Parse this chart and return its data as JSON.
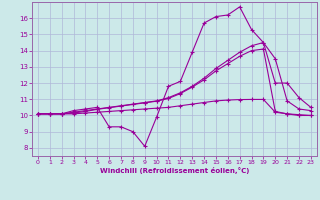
{
  "xlabel": "Windchill (Refroidissement éolien,°C)",
  "background_color": "#cce9e9",
  "grid_color": "#b0b8d8",
  "line_color": "#990099",
  "spine_color": "#9966aa",
  "xlim": [
    -0.5,
    23.5
  ],
  "ylim": [
    7.5,
    17.0
  ],
  "xticks": [
    0,
    1,
    2,
    3,
    4,
    5,
    6,
    7,
    8,
    9,
    10,
    11,
    12,
    13,
    14,
    15,
    16,
    17,
    18,
    19,
    20,
    21,
    22,
    23
  ],
  "yticks": [
    8,
    9,
    10,
    11,
    12,
    13,
    14,
    15,
    16
  ],
  "series": [
    {
      "x": [
        0,
        1,
        2,
        3,
        4,
        5,
        6,
        7,
        8,
        9,
        10,
        11,
        12,
        13,
        14,
        15,
        16,
        17,
        18,
        19,
        20,
        21,
        22,
        23
      ],
      "y": [
        10.1,
        10.1,
        10.1,
        10.3,
        10.4,
        10.5,
        9.3,
        9.3,
        9.0,
        8.1,
        9.9,
        11.8,
        12.1,
        13.9,
        15.7,
        16.1,
        16.2,
        16.7,
        15.3,
        14.5,
        12.0,
        12.0,
        11.1,
        10.5
      ]
    },
    {
      "x": [
        0,
        1,
        2,
        3,
        4,
        5,
        6,
        7,
        8,
        9,
        10,
        11,
        12,
        13,
        14,
        15,
        16,
        17,
        18,
        19,
        20,
        21,
        22,
        23
      ],
      "y": [
        10.1,
        10.1,
        10.1,
        10.2,
        10.3,
        10.4,
        10.5,
        10.6,
        10.7,
        10.8,
        10.9,
        11.1,
        11.4,
        11.8,
        12.3,
        12.9,
        13.4,
        13.9,
        14.3,
        14.5,
        13.5,
        10.9,
        10.4,
        10.3
      ]
    },
    {
      "x": [
        0,
        1,
        2,
        3,
        4,
        5,
        6,
        7,
        8,
        9,
        10,
        11,
        12,
        13,
        14,
        15,
        16,
        17,
        18,
        19,
        20,
        21,
        22,
        23
      ],
      "y": [
        10.1,
        10.1,
        10.1,
        10.15,
        10.25,
        10.38,
        10.48,
        10.58,
        10.68,
        10.78,
        10.88,
        11.05,
        11.35,
        11.75,
        12.2,
        12.75,
        13.2,
        13.65,
        14.0,
        14.1,
        10.25,
        10.1,
        10.0,
        10.0
      ]
    },
    {
      "x": [
        0,
        1,
        2,
        3,
        4,
        5,
        6,
        7,
        8,
        9,
        10,
        11,
        12,
        13,
        14,
        15,
        16,
        17,
        18,
        19,
        20,
        21,
        22,
        23
      ],
      "y": [
        10.1,
        10.1,
        10.1,
        10.1,
        10.15,
        10.2,
        10.25,
        10.3,
        10.35,
        10.4,
        10.45,
        10.5,
        10.6,
        10.7,
        10.8,
        10.9,
        10.95,
        10.98,
        10.99,
        10.99,
        10.2,
        10.1,
        10.05,
        10.0
      ]
    }
  ]
}
